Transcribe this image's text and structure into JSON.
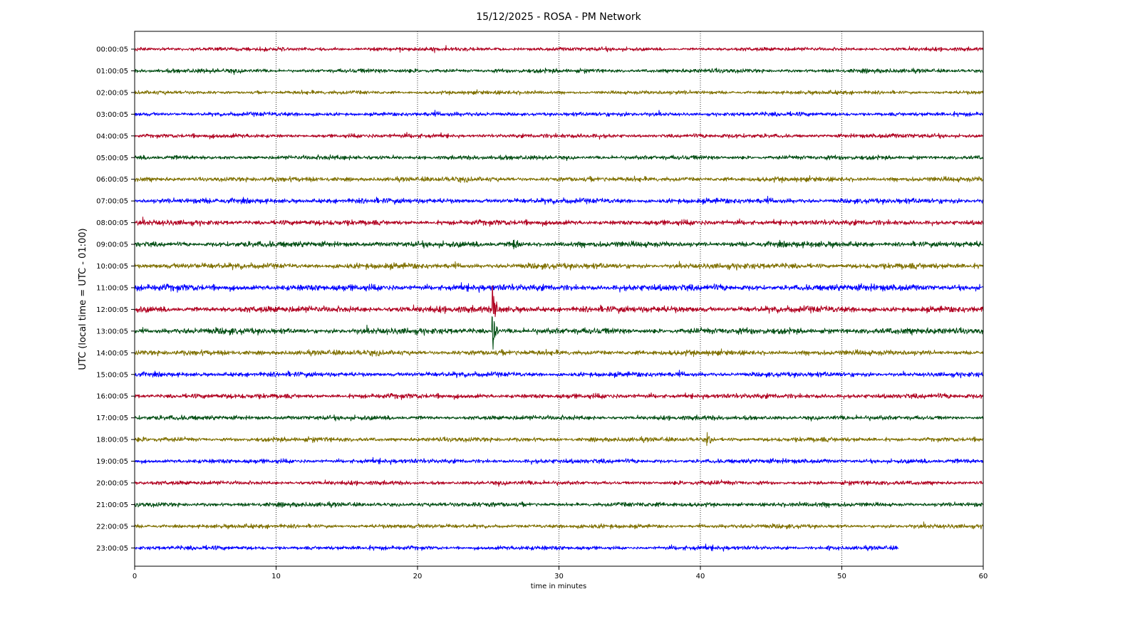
{
  "chart_data": {
    "type": "line",
    "title": "15/12/2025 - ROSA - PM Network",
    "xlabel": "time in minutes",
    "ylabel": "UTC (local time = UTC - 01:00)",
    "xlim": [
      0,
      60
    ],
    "xticks": [
      0,
      10,
      20,
      30,
      40,
      50,
      60
    ],
    "grid": "vertical-dotted",
    "colors": [
      "#b00020",
      "#004d12",
      "#7f7000",
      "#0000ff"
    ],
    "rows": [
      {
        "label": "00:00:05",
        "end": 60,
        "amp": 2.0
      },
      {
        "label": "01:00:05",
        "end": 60,
        "amp": 2.2
      },
      {
        "label": "02:00:05",
        "end": 60,
        "amp": 2.0
      },
      {
        "label": "03:00:05",
        "end": 60,
        "amp": 2.2
      },
      {
        "label": "04:00:05",
        "end": 60,
        "amp": 2.2
      },
      {
        "label": "05:00:05",
        "end": 60,
        "amp": 2.3
      },
      {
        "label": "06:00:05",
        "end": 60,
        "amp": 2.6
      },
      {
        "label": "07:00:05",
        "end": 60,
        "amp": 2.8
      },
      {
        "label": "08:00:05",
        "end": 60,
        "amp": 2.8
      },
      {
        "label": "09:00:05",
        "end": 60,
        "amp": 3.0
      },
      {
        "label": "10:00:05",
        "end": 60,
        "amp": 3.0
      },
      {
        "label": "11:00:05",
        "end": 60,
        "amp": 3.4
      },
      {
        "label": "12:00:05",
        "end": 60,
        "amp": 3.4
      },
      {
        "label": "13:00:05",
        "end": 60,
        "amp": 3.2
      },
      {
        "label": "14:00:05",
        "end": 60,
        "amp": 2.8
      },
      {
        "label": "15:00:05",
        "end": 60,
        "amp": 2.6
      },
      {
        "label": "16:00:05",
        "end": 60,
        "amp": 2.6
      },
      {
        "label": "17:00:05",
        "end": 60,
        "amp": 2.4
      },
      {
        "label": "18:00:05",
        "end": 60,
        "amp": 2.4
      },
      {
        "label": "19:00:05",
        "end": 60,
        "amp": 2.4
      },
      {
        "label": "20:00:05",
        "end": 60,
        "amp": 2.2
      },
      {
        "label": "21:00:05",
        "end": 60,
        "amp": 2.4
      },
      {
        "label": "22:00:05",
        "end": 60,
        "amp": 2.2
      },
      {
        "label": "23:00:05",
        "end": 54,
        "amp": 2.2
      }
    ],
    "events": [
      {
        "row": 9,
        "minute": 26.8,
        "amp": 14
      },
      {
        "row": 12,
        "minute": 25.3,
        "amp": 40
      },
      {
        "row": 13,
        "minute": 25.3,
        "amp": 34
      },
      {
        "row": 18,
        "minute": 40.5,
        "amp": 14
      },
      {
        "row": 23,
        "minute": 49.0,
        "amp": 5
      }
    ]
  }
}
